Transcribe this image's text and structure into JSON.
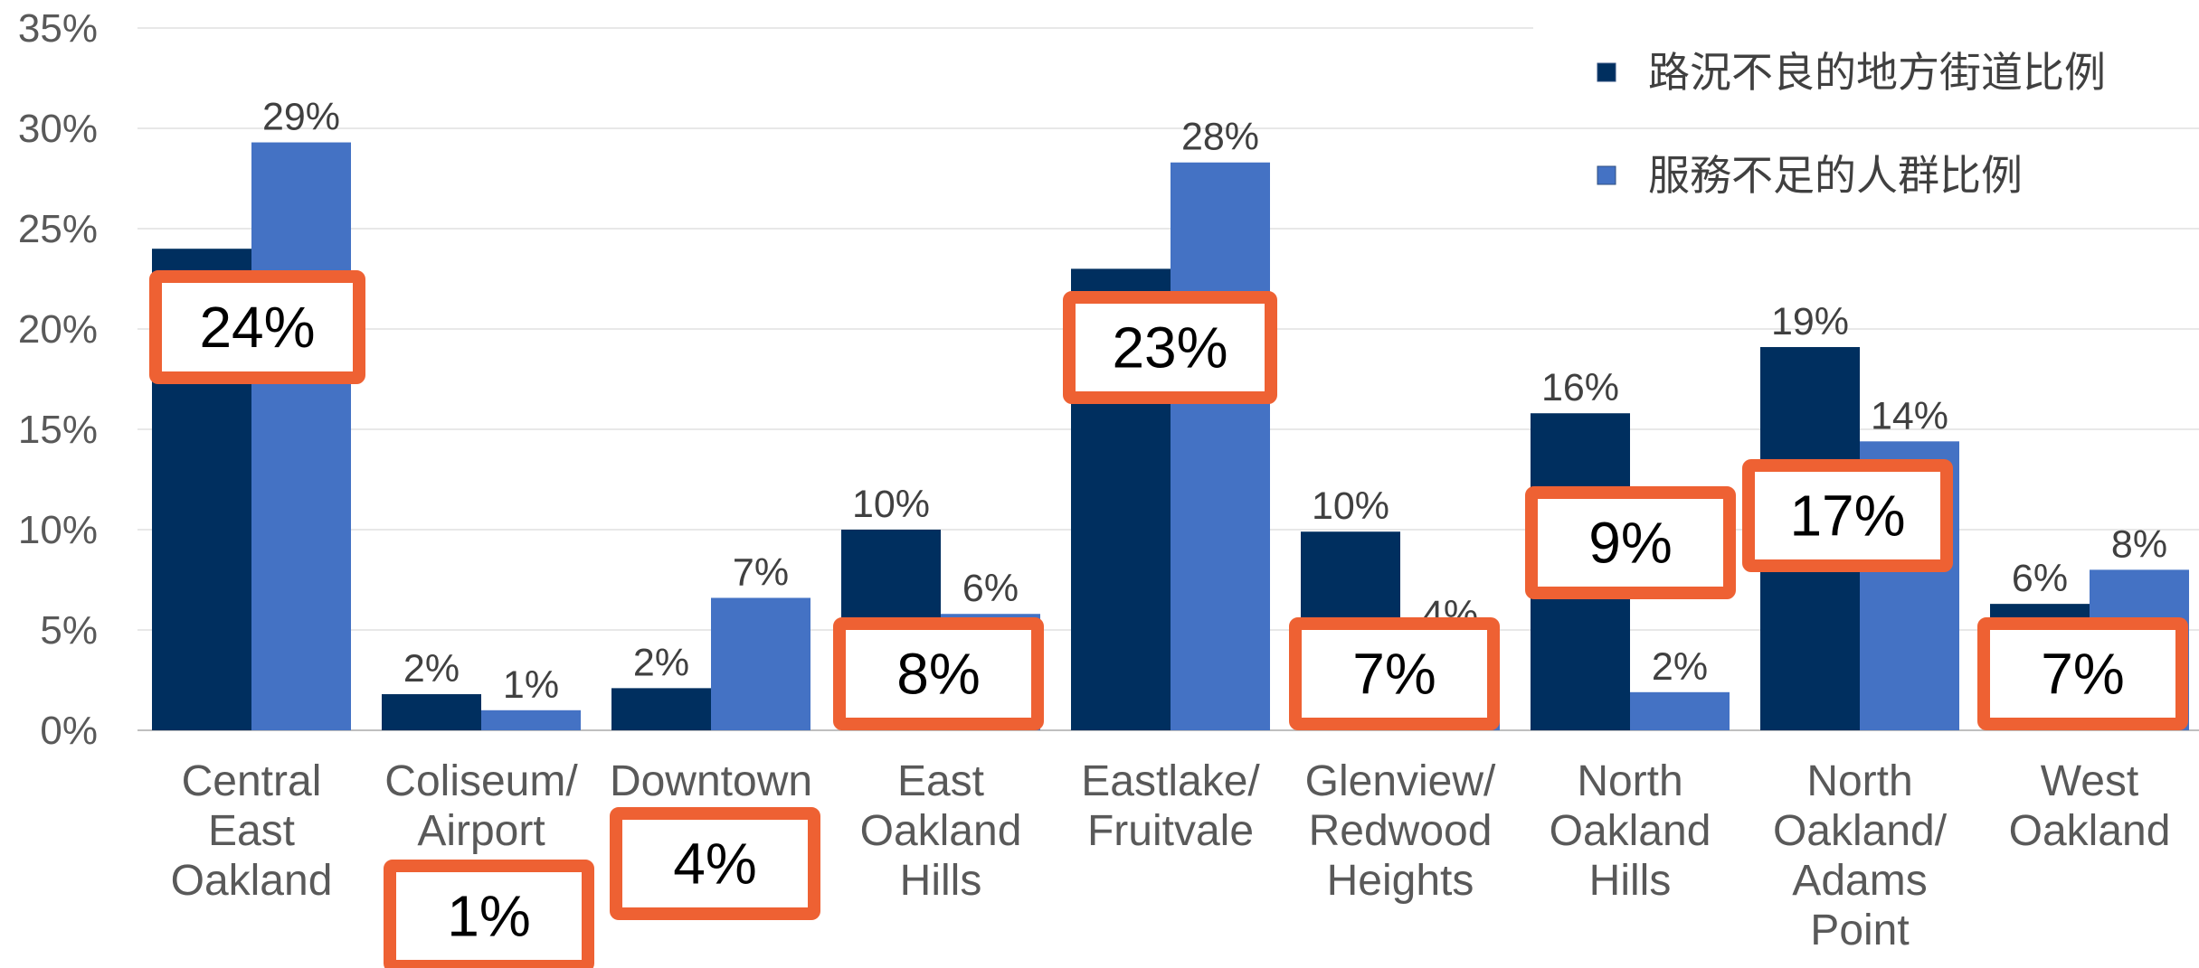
{
  "chart_data": {
    "type": "bar",
    "categories": [
      [
        "Central",
        "East",
        "Oakland"
      ],
      [
        "Coliseum/",
        "Airport"
      ],
      [
        "Downtown"
      ],
      [
        "East",
        "Oakland",
        "Hills"
      ],
      [
        "Eastlake/",
        "Fruitvale"
      ],
      [
        "Glenview/",
        "Redwood",
        "Heights"
      ],
      [
        "North",
        "Oakland",
        "Hills"
      ],
      [
        "North",
        "Oakland/",
        "Adams",
        "Point"
      ],
      [
        "West",
        "Oakland"
      ]
    ],
    "series": [
      {
        "name": "路況不良的地方街道比例",
        "color": "#002f5f",
        "values": [
          24,
          1.8,
          2.1,
          10,
          23,
          9.9,
          15.8,
          19.1,
          6.3
        ],
        "labels": [
          "",
          "2%",
          "2%",
          "10%",
          "",
          "10%",
          "16%",
          "19%",
          "6%"
        ]
      },
      {
        "name": "服務不足的人群比例",
        "color": "#4472c4",
        "values": [
          29.3,
          1,
          6.6,
          5.8,
          28.3,
          4.5,
          1.9,
          14.4,
          8
        ],
        "labels": [
          "29%",
          "1%",
          "7%",
          "6%",
          "28%",
          "4%",
          "2%",
          "14%",
          "8%"
        ]
      }
    ],
    "yticks": [
      "0%",
      "5%",
      "10%",
      "15%",
      "20%",
      "25%",
      "30%",
      "35%"
    ],
    "ylim": [
      0,
      35
    ],
    "grid": true,
    "legend": "top-right",
    "callouts": [
      "24%",
      "1%",
      "4%",
      "8%",
      "23%",
      "7%",
      "9%",
      "17%",
      "7%"
    ],
    "callout_color": "#ee6133"
  }
}
